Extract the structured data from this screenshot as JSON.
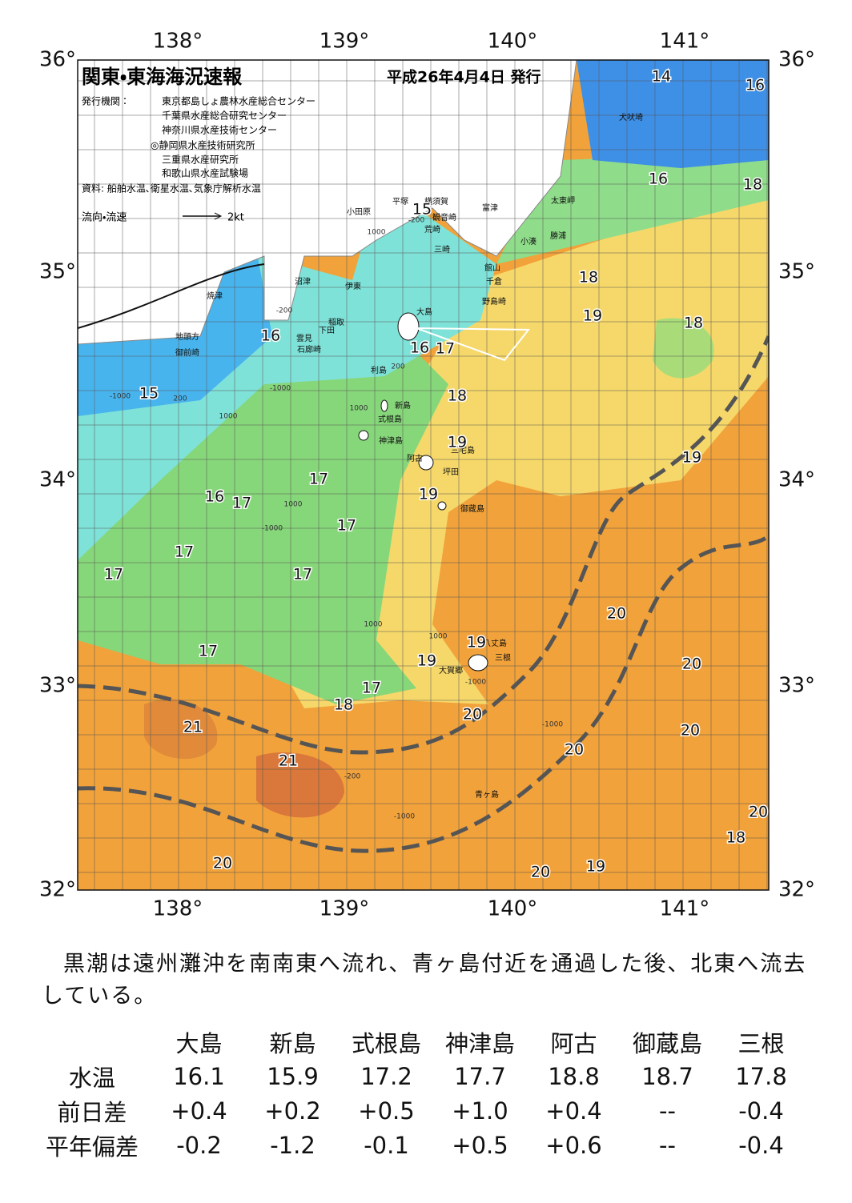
{
  "header": {
    "title": "関東・東海海況速報",
    "date": "平成26年4月4日 発行",
    "publisher_label": "発行機関：",
    "publishers": [
      "東京都島しょ農林水産総合センター",
      "千葉県水産総合研究センター",
      "神奈川県水産技術センター",
      "◎静岡県水産技術研究所",
      "三重県水産研究所",
      "和歌山県水産試験場"
    ],
    "source": "資料: 船舶水温､衛星水温､気象庁解析水温",
    "legend_label": "流向・流速",
    "legend_scale": "2kt"
  },
  "axes": {
    "lon_labels": [
      "138°",
      "139°",
      "140°",
      "141°"
    ],
    "lat_labels": [
      "36°",
      "35°",
      "34°",
      "33°",
      "32°"
    ]
  },
  "places": [
    "小田原",
    "平塚",
    "横須賀",
    "観音崎",
    "荒崎",
    "富津",
    "三崎",
    "館山",
    "千倉",
    "小湊",
    "勝浦",
    "太東岬",
    "犬吠埼",
    "沼津",
    "伊東",
    "焼津",
    "稲取",
    "下田",
    "雲見",
    "石廊崎",
    "地頭方",
    "御前崎",
    "野島崎",
    "大島",
    "利島",
    "新島",
    "式根島",
    "神津島",
    "三宅島",
    "阿古",
    "坪田",
    "御蔵島",
    "八丈島",
    "三根",
    "大賀郷",
    "青ヶ島"
  ],
  "contour_labels": [
    14,
    16,
    16,
    18,
    18,
    19,
    18,
    16,
    16,
    17,
    15,
    18,
    19,
    19,
    17,
    16,
    17,
    19,
    17,
    17,
    17,
    17,
    20,
    19,
    19,
    17,
    20,
    17,
    18,
    20,
    21,
    20,
    20,
    21,
    20,
    18,
    20,
    20,
    19,
    15
  ],
  "depth_labels": [
    "1000",
    "-200",
    "1000",
    "-200",
    "200",
    "-1000",
    "1000",
    "200",
    "-1000",
    "1000",
    "-1000",
    "1000",
    "1000",
    "-1000",
    "-200",
    "-1000",
    "-1000"
  ],
  "text": "黒潮は遠州灘沖を南南東へ流れ、青ヶ島付近を通過した後、北東へ流去している。",
  "table": {
    "columns": [
      "大島",
      "新島",
      "式根島",
      "神津島",
      "阿古",
      "御蔵島",
      "三根"
    ],
    "rows": [
      {
        "label": "水温",
        "values": [
          "16.1",
          "15.9",
          "17.2",
          "17.7",
          "18.8",
          "18.7",
          "17.8"
        ]
      },
      {
        "label": "前日差",
        "values": [
          "+0.4",
          "+0.2",
          "+0.5",
          "+1.0",
          "+0.4",
          "--",
          "-0.4"
        ]
      },
      {
        "label": "平年偏差",
        "values": [
          "-0.2",
          "-1.2",
          "-0.1",
          "+0.5",
          "+0.6",
          "--",
          "-0.4"
        ]
      }
    ]
  }
}
